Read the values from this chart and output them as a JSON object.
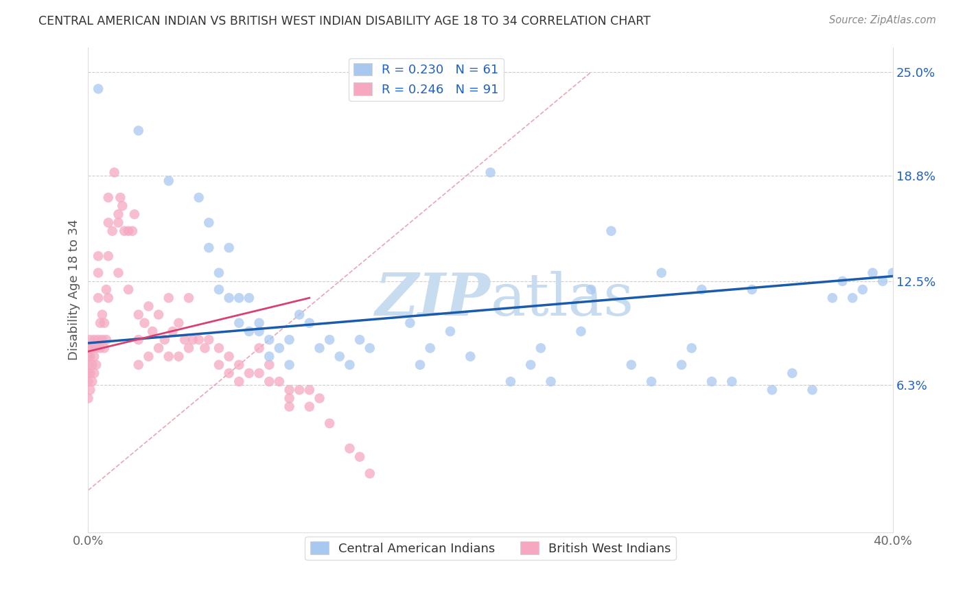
{
  "title": "CENTRAL AMERICAN INDIAN VS BRITISH WEST INDIAN DISABILITY AGE 18 TO 34 CORRELATION CHART",
  "source": "Source: ZipAtlas.com",
  "ylabel": "Disability Age 18 to 34",
  "xlim": [
    0.0,
    0.4
  ],
  "ylim": [
    -0.025,
    0.265
  ],
  "xtick_positions": [
    0.0,
    0.4
  ],
  "xtick_labels": [
    "0.0%",
    "40.0%"
  ],
  "ytick_positions_right": [
    0.063,
    0.125,
    0.188,
    0.25
  ],
  "ytick_labels_right": [
    "6.3%",
    "12.5%",
    "18.8%",
    "25.0%"
  ],
  "r_blue": 0.23,
  "n_blue": 61,
  "r_pink": 0.246,
  "n_pink": 91,
  "blue_color": "#A8C8F0",
  "pink_color": "#F5A8C0",
  "blue_line_color": "#1A5BAB",
  "pink_line_color": "#D94070",
  "diag_line_color": "#E08090",
  "legend_text_color": "#2060C0",
  "title_color": "#333333",
  "source_color": "#888888",
  "ylabel_color": "#555555",
  "tick_color": "#666666",
  "grid_color": "#CCCCCC",
  "background_color": "#FFFFFF",
  "watermark_color": "#C8DCF0",
  "blue_trend_x": [
    0.0,
    0.4
  ],
  "blue_trend_y": [
    0.088,
    0.128
  ],
  "pink_trend_x": [
    0.0,
    0.11
  ],
  "pink_trend_y": [
    0.083,
    0.115
  ],
  "diag_line_x": [
    0.0,
    0.25
  ],
  "diag_line_y": [
    0.0,
    0.25
  ],
  "blue_x": [
    0.005,
    0.025,
    0.04,
    0.055,
    0.06,
    0.06,
    0.065,
    0.065,
    0.07,
    0.07,
    0.075,
    0.075,
    0.08,
    0.08,
    0.085,
    0.085,
    0.09,
    0.09,
    0.095,
    0.1,
    0.1,
    0.105,
    0.11,
    0.115,
    0.12,
    0.125,
    0.13,
    0.135,
    0.14,
    0.16,
    0.165,
    0.17,
    0.18,
    0.19,
    0.2,
    0.21,
    0.22,
    0.225,
    0.23,
    0.245,
    0.25,
    0.26,
    0.27,
    0.28,
    0.285,
    0.295,
    0.3,
    0.305,
    0.31,
    0.32,
    0.33,
    0.34,
    0.35,
    0.36,
    0.37,
    0.375,
    0.38,
    0.385,
    0.39,
    0.395,
    0.4
  ],
  "blue_y": [
    0.24,
    0.215,
    0.185,
    0.175,
    0.16,
    0.145,
    0.13,
    0.12,
    0.145,
    0.115,
    0.115,
    0.1,
    0.115,
    0.095,
    0.095,
    0.1,
    0.09,
    0.08,
    0.085,
    0.09,
    0.075,
    0.105,
    0.1,
    0.085,
    0.09,
    0.08,
    0.075,
    0.09,
    0.085,
    0.1,
    0.075,
    0.085,
    0.095,
    0.08,
    0.19,
    0.065,
    0.075,
    0.085,
    0.065,
    0.095,
    0.12,
    0.155,
    0.075,
    0.065,
    0.13,
    0.075,
    0.085,
    0.12,
    0.065,
    0.065,
    0.12,
    0.06,
    0.07,
    0.06,
    0.115,
    0.125,
    0.115,
    0.12,
    0.13,
    0.125,
    0.13
  ],
  "pink_x": [
    0.0,
    0.0,
    0.0,
    0.0,
    0.0,
    0.0,
    0.001,
    0.001,
    0.001,
    0.001,
    0.002,
    0.002,
    0.002,
    0.003,
    0.003,
    0.003,
    0.004,
    0.004,
    0.005,
    0.005,
    0.005,
    0.005,
    0.006,
    0.006,
    0.007,
    0.007,
    0.008,
    0.008,
    0.009,
    0.009,
    0.01,
    0.01,
    0.01,
    0.01,
    0.012,
    0.013,
    0.015,
    0.015,
    0.015,
    0.016,
    0.017,
    0.018,
    0.02,
    0.02,
    0.022,
    0.023,
    0.025,
    0.025,
    0.025,
    0.028,
    0.03,
    0.03,
    0.032,
    0.035,
    0.035,
    0.038,
    0.04,
    0.04,
    0.042,
    0.045,
    0.045,
    0.048,
    0.05,
    0.05,
    0.052,
    0.055,
    0.058,
    0.06,
    0.065,
    0.065,
    0.07,
    0.07,
    0.075,
    0.075,
    0.08,
    0.085,
    0.085,
    0.09,
    0.09,
    0.095,
    0.1,
    0.1,
    0.1,
    0.105,
    0.11,
    0.11,
    0.115,
    0.12,
    0.13,
    0.135,
    0.14
  ],
  "pink_y": [
    0.085,
    0.08,
    0.075,
    0.07,
    0.065,
    0.055,
    0.09,
    0.08,
    0.07,
    0.06,
    0.085,
    0.075,
    0.065,
    0.09,
    0.08,
    0.07,
    0.085,
    0.075,
    0.14,
    0.13,
    0.115,
    0.09,
    0.1,
    0.085,
    0.105,
    0.09,
    0.1,
    0.085,
    0.12,
    0.09,
    0.175,
    0.16,
    0.14,
    0.115,
    0.155,
    0.19,
    0.165,
    0.16,
    0.13,
    0.175,
    0.17,
    0.155,
    0.155,
    0.12,
    0.155,
    0.165,
    0.105,
    0.09,
    0.075,
    0.1,
    0.11,
    0.08,
    0.095,
    0.105,
    0.085,
    0.09,
    0.115,
    0.08,
    0.095,
    0.1,
    0.08,
    0.09,
    0.115,
    0.085,
    0.09,
    0.09,
    0.085,
    0.09,
    0.085,
    0.075,
    0.08,
    0.07,
    0.075,
    0.065,
    0.07,
    0.085,
    0.07,
    0.075,
    0.065,
    0.065,
    0.06,
    0.055,
    0.05,
    0.06,
    0.06,
    0.05,
    0.055,
    0.04,
    0.025,
    0.02,
    0.01
  ]
}
